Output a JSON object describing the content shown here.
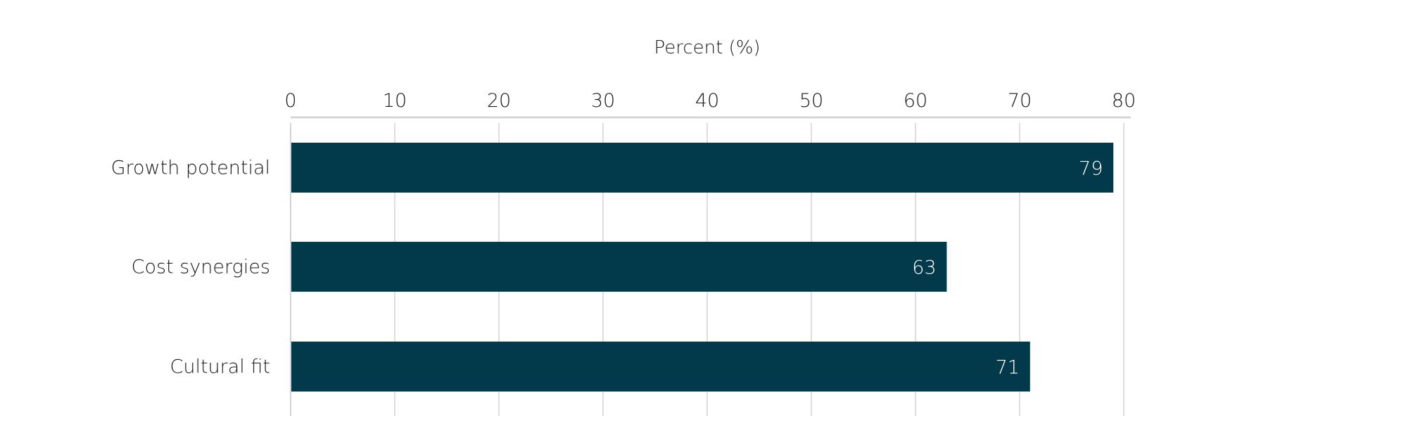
{
  "chart_data": {
    "type": "bar",
    "orientation": "horizontal",
    "title": "",
    "xlabel": "Percent (%)",
    "ylabel": "",
    "categories": [
      "Growth potential",
      "Cost synergies",
      "Cultural fit"
    ],
    "values": [
      79,
      63,
      71
    ],
    "xlim": [
      0,
      80
    ],
    "xticks": [
      0,
      10,
      20,
      30,
      40,
      50,
      60,
      70,
      80
    ],
    "axis_position": "top",
    "grid": true,
    "data_labels": true,
    "bar_color": "#02394b",
    "label_color": "#ffffff",
    "grid_color": "#d3d3d3"
  }
}
